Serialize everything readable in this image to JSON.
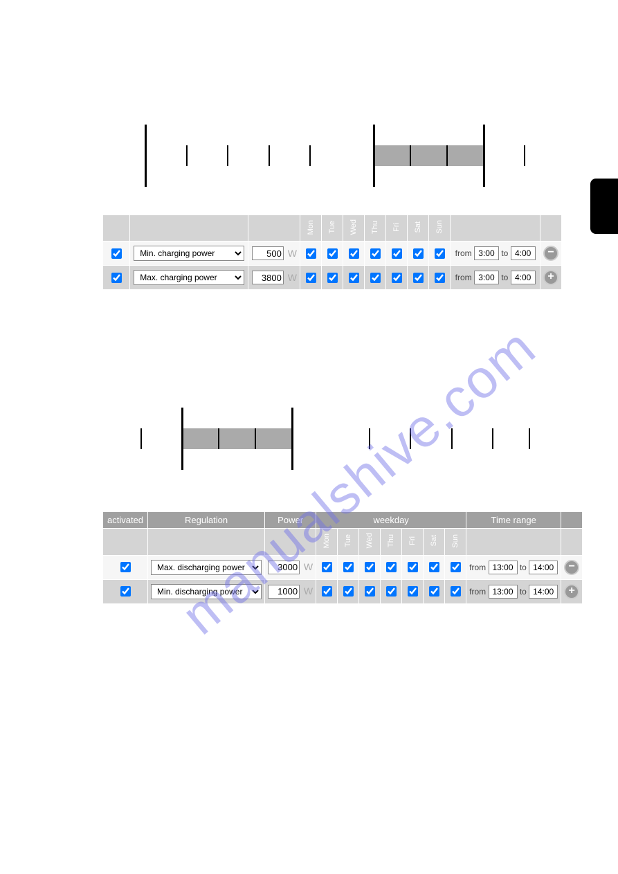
{
  "watermark_text": "manualshive.com",
  "headers": {
    "activated": "activated",
    "regulation": "Regulation",
    "power": "Power",
    "weekday": "weekday",
    "timerange": "Time range"
  },
  "days": [
    "Mon",
    "Tue",
    "Wed",
    "Thu",
    "Fri",
    "Sat",
    "Sun"
  ],
  "unit_w": "W",
  "from_label": "from",
  "to_label": "to",
  "chart1": {
    "ticks": [
      {
        "pos": 9,
        "type": "major"
      },
      {
        "pos": 18,
        "type": "minor"
      },
      {
        "pos": 27,
        "type": "minor"
      },
      {
        "pos": 36,
        "type": "minor"
      },
      {
        "pos": 45,
        "type": "minor"
      },
      {
        "pos": 59,
        "type": "major"
      },
      {
        "pos": 67,
        "type": "minor"
      },
      {
        "pos": 75,
        "type": "minor"
      },
      {
        "pos": 83,
        "type": "major"
      },
      {
        "pos": 92,
        "type": "minor"
      }
    ],
    "band": {
      "from": 59,
      "to": 83
    }
  },
  "chart2": {
    "ticks": [
      {
        "pos": 8,
        "type": "minor"
      },
      {
        "pos": 17,
        "type": "major"
      },
      {
        "pos": 25,
        "type": "minor"
      },
      {
        "pos": 33,
        "type": "minor"
      },
      {
        "pos": 41,
        "type": "major"
      },
      {
        "pos": 58,
        "type": "minor"
      },
      {
        "pos": 67,
        "type": "minor"
      },
      {
        "pos": 76,
        "type": "minor"
      },
      {
        "pos": 85,
        "type": "minor"
      },
      {
        "pos": 93,
        "type": "minor"
      }
    ],
    "band": {
      "from": 17,
      "to": 41
    }
  },
  "table1": {
    "rows": [
      {
        "activated": true,
        "regulation": "Min. charging power",
        "power": "500",
        "days": [
          true,
          true,
          true,
          true,
          true,
          true,
          true
        ],
        "from": "3:00",
        "to": "4:00",
        "btn": "minus",
        "bg": "light"
      },
      {
        "activated": true,
        "regulation": "Max. charging power",
        "power": "3800",
        "days": [
          true,
          true,
          true,
          true,
          true,
          true,
          true
        ],
        "from": "3:00",
        "to": "4:00",
        "btn": "plus",
        "bg": "dark"
      }
    ]
  },
  "table2": {
    "rows": [
      {
        "activated": true,
        "regulation": "Max. discharging power",
        "power": "3000",
        "days": [
          true,
          true,
          true,
          true,
          true,
          true,
          true
        ],
        "from": "13:00",
        "to": "14:00",
        "btn": "minus",
        "bg": "light"
      },
      {
        "activated": true,
        "regulation": "Min. discharging power",
        "power": "1000",
        "days": [
          true,
          true,
          true,
          true,
          true,
          true,
          true
        ],
        "from": "13:00",
        "to": "14:00",
        "btn": "plus",
        "bg": "dark"
      }
    ]
  },
  "colors": {
    "header_bg": "#a0a0a0",
    "row_light": "#f6f6f6",
    "row_dark": "#d4d4d4",
    "band": "#aaaaaa",
    "watermark": "#7070e8"
  }
}
